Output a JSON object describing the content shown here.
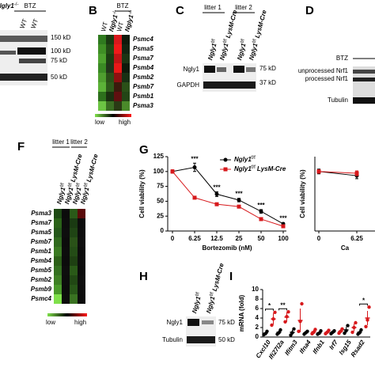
{
  "panels": {
    "A": {
      "genotype": {
        "gene": "Ngly1",
        "sup": "-/-"
      },
      "treatment": "BTZ",
      "lanes": [
        "WT",
        "WT"
      ],
      "markers": [
        "150 kD",
        "100 kD",
        "75 kD",
        "50 kD"
      ]
    },
    "B": {
      "letter": "B",
      "treatment": "BTZ",
      "columns": [
        {
          "gene": "WT"
        },
        {
          "gene": "Ngly1",
          "sup": "-/-"
        },
        {
          "gene": "WT"
        },
        {
          "gene": "Ngly1",
          "sup": "-/-"
        }
      ],
      "rows": [
        "Psmc4",
        "Psma5",
        "Psma7",
        "Psmb4",
        "Psmb2",
        "Psmb7",
        "Psmb1",
        "Psma3"
      ],
      "colors": [
        [
          "#2f7a1f",
          "#1a3a12",
          "#d8181c",
          "#101a0c"
        ],
        [
          "#3f8f25",
          "#224a15",
          "#f01a1a",
          "#142412"
        ],
        [
          "#4da12e",
          "#1b3d12",
          "#c01416",
          "#1c3414"
        ],
        [
          "#3a8a24",
          "#21341a",
          "#e81818",
          "#0f1a0c"
        ],
        [
          "#4f9f2f",
          "#2a4f18",
          "#8c1010",
          "#183014"
        ],
        [
          "#5cb238",
          "#2d5a1a",
          "#3a1a0c",
          "#2a5018"
        ],
        [
          "#2d701c",
          "#1a3010",
          "#601010",
          "#234616"
        ],
        [
          "#6cc443",
          "#3a6e22",
          "#2a3a14",
          "#4a8a2a"
        ]
      ],
      "legend": [
        "low",
        "high"
      ]
    },
    "C": {
      "letter": "C",
      "litters": [
        "litter 1",
        "litter 2"
      ],
      "lanes": [
        {
          "gene": "Ngly1",
          "sup": "f/f"
        },
        {
          "gene": "Ngly1",
          "sup": "f/f",
          "suffix": "LysM-Cre"
        },
        {
          "gene": "Ngly1",
          "sup": "f/f"
        },
        {
          "gene": "Ngly1",
          "sup": "f/f",
          "suffix": "LysM-Cre"
        }
      ],
      "rows": [
        "Ngly1",
        "GAPDH"
      ],
      "markers": [
        "75 kD",
        "37 kD"
      ]
    },
    "D": {
      "letter": "D",
      "rows": [
        "BTZ",
        "unprocessed Nrf1",
        "processed Nrf1",
        "Tubulin"
      ]
    },
    "F": {
      "letter": "F",
      "litters": [
        "litter 1",
        "litter 2"
      ],
      "lanes": [
        {
          "gene": "Ngly1",
          "sup": "f/f"
        },
        {
          "gene": "Ngly1",
          "sup": "f/f",
          "suffix": "LysM-Cre"
        },
        {
          "gene": "Ngly1",
          "sup": "f/f"
        },
        {
          "gene": "Ngly1",
          "sup": "f/f",
          "suffix": "LysM-Cre"
        }
      ],
      "rows": [
        "Psma3",
        "Psma7",
        "Psma5",
        "Psmb7",
        "Psmb1",
        "Psmb4",
        "Psmb5",
        "Psmb2",
        "Psmb9",
        "Psmc4"
      ],
      "colors": [
        [
          "#1e4a14",
          "#0c0c0c",
          "#2a5a18",
          "#5a0a0a"
        ],
        [
          "#2a6218",
          "#0d0d0d",
          "#1a3a12",
          "#0c0c0c"
        ],
        [
          "#25581a",
          "#0e0e0e",
          "#1f4414",
          "#0d0d0d"
        ],
        [
          "#306a1e",
          "#0c0c0c",
          "#2a5218",
          "#0e0e0e"
        ],
        [
          "#3a7a22",
          "#0d0d0d",
          "#244c16",
          "#0c0c0c"
        ],
        [
          "#2c6018",
          "#0c0c0c",
          "#1e4012",
          "#0d0d0d"
        ],
        [
          "#347020",
          "#0e0e0e",
          "#2a5a18",
          "#0c0c0c"
        ],
        [
          "#3e8024",
          "#0d0d0d",
          "#214814",
          "#0e0e0e"
        ],
        [
          "#4a9a2a",
          "#0c0c0c",
          "#285618",
          "#0d0d0d"
        ],
        [
          "#7fe04a",
          "#0d0d0d",
          "#3a7222",
          "#0c0c0c"
        ]
      ],
      "legend": [
        "low",
        "high"
      ]
    },
    "G": {
      "letter": "G"
    },
    "H": {
      "letter": "H",
      "lanes": [
        {
          "gene": "Ngly1",
          "sup": "f/f"
        },
        {
          "gene": "Ngly1",
          "sup": "f/f",
          "suffix": "LysM-Cre"
        }
      ],
      "rows": [
        "Ngly1",
        "Tubulin"
      ],
      "markers": [
        "75 kD",
        "50 kD"
      ]
    },
    "I": {
      "letter": "I"
    }
  },
  "chart_data": [
    {
      "type": "line",
      "xlabel": "Bortezomib (nM)",
      "ylabel": "Cell viability (%)",
      "categories": [
        "0",
        "6.25",
        "12.5",
        "25",
        "50",
        "100"
      ],
      "ylim": [
        0,
        125
      ],
      "yticks": [
        0,
        25,
        50,
        75,
        100,
        125
      ],
      "legend": "upper right",
      "series": [
        {
          "name": {
            "gene": "Ngly1",
            "sup": "f/f"
          },
          "color": "#000000",
          "marker": "circle",
          "values": [
            100,
            107,
            62,
            52,
            33,
            12
          ],
          "errors": [
            3,
            7,
            4,
            3,
            3,
            2
          ]
        },
        {
          "name": {
            "gene": "Ngly1",
            "sup": "f/f",
            "suffix": "LysM-Cre"
          },
          "color": "#d7191c",
          "marker": "square",
          "values": [
            100,
            56,
            45,
            41,
            20,
            8
          ],
          "errors": [
            3,
            2,
            2,
            2,
            2,
            1
          ]
        }
      ],
      "significance": [
        null,
        "***",
        "***",
        "***",
        "***",
        "***"
      ]
    },
    {
      "type": "line",
      "xlabel": "Ca",
      "ylabel": "Cell viability (%)",
      "categories": [
        "0",
        "6.25"
      ],
      "ylim": [
        0,
        125
      ],
      "series": [
        {
          "color": "#000000",
          "marker": "circle",
          "values": [
            100,
            93
          ],
          "errors": [
            4,
            5
          ]
        },
        {
          "color": "#d7191c",
          "marker": "square",
          "values": [
            100,
            97
          ],
          "errors": [
            3,
            4
          ]
        }
      ]
    },
    {
      "type": "dot",
      "ylabel": "mRNA (fold)",
      "categories": [
        "Cxcl10",
        "Ifi27l2a",
        "Ifitm3",
        "Ifna4",
        "Ifnb1",
        "Irf7",
        "Isg15",
        "Rsad2"
      ],
      "ylim": [
        0,
        10
      ],
      "yticks": [
        0,
        2,
        4,
        6,
        8,
        10
      ],
      "series": [
        {
          "color": "#000000",
          "values": [
            0.8,
            1,
            1,
            0.9,
            0.9,
            1,
            1.5,
            1
          ],
          "errors": [
            0.3,
            0.4,
            0.5,
            0.3,
            0.3,
            0.3,
            0.6,
            0.4
          ],
          "points": [
            [
              0.5,
              0.7,
              1.2
            ],
            [
              0.6,
              0.9,
              1.5
            ],
            [
              0.4,
              0.9,
              1.7
            ],
            [
              0.6,
              0.9,
              1.2
            ],
            [
              0.6,
              0.8,
              1.3
            ],
            [
              0.7,
              1,
              1.3
            ],
            [
              0.8,
              1.3,
              2.4
            ],
            [
              0.6,
              0.9,
              1.5
            ]
          ]
        },
        {
          "color": "#d7191c",
          "values": [
            3.8,
            4.2,
            3.5,
            1.1,
            1,
            1.2,
            2,
            4
          ],
          "errors": [
            1.2,
            1,
            2.5,
            0.4,
            0.3,
            0.4,
            0.8,
            1.5
          ],
          "points": [
            [
              2.5,
              3.8,
              5.2
            ],
            [
              3.2,
              4.3,
              5.3
            ],
            [
              1.2,
              3.3,
              7
            ],
            [
              0.7,
              1,
              1.6
            ],
            [
              0.7,
              1,
              1.4
            ],
            [
              0.8,
              1.2,
              1.7
            ],
            [
              1,
              2,
              3
            ],
            [
              2.2,
              3.6,
              6.3
            ]
          ]
        }
      ],
      "significance": [
        "*",
        "**",
        null,
        null,
        null,
        null,
        null,
        "*"
      ]
    }
  ]
}
